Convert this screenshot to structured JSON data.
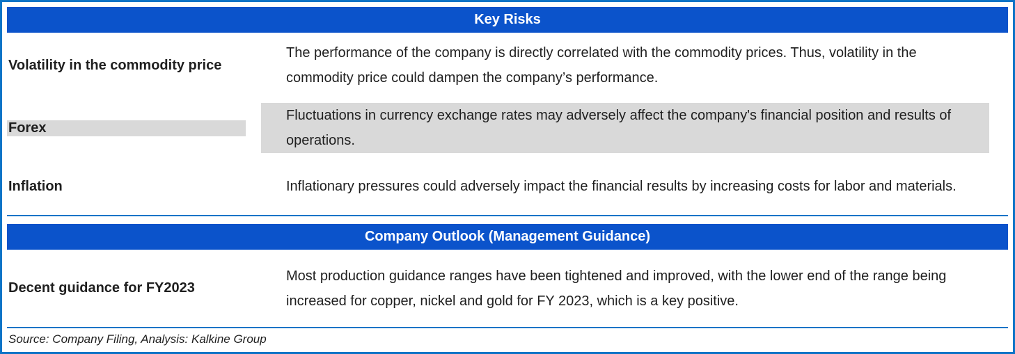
{
  "colors": {
    "header_bg": "#0b53cb",
    "border_blue": "#0c74c7",
    "shaded_row_bg": "#d9d9d9",
    "text_color": "#1f1f1f",
    "header_text": "#ffffff"
  },
  "sections": [
    {
      "title": "Key Risks",
      "rows": [
        {
          "label": "Volatility in the commodity price",
          "description": "The performance of the company is directly correlated with the commodity prices. Thus, volatility in the commodity price could dampen the company’s performance.",
          "shaded": false
        },
        {
          "label": "Forex",
          "description": "Fluctuations in currency exchange rates may adversely affect the company's financial position and results of operations.",
          "shaded": true
        },
        {
          "label": "Inflation",
          "description": "Inflationary pressures could adversely impact the financial results by increasing costs for labor and materials.",
          "shaded": false
        }
      ]
    },
    {
      "title": "Company Outlook (Management Guidance)",
      "rows": [
        {
          "label": "Decent guidance for FY2023",
          "description": "Most production guidance ranges have been tightened and improved, with the lower end of the range being increased for copper, nickel and gold for FY 2023, which is a key positive.",
          "shaded": false
        }
      ]
    }
  ],
  "footer": {
    "source": "Source: Company Filing, Analysis: Kalkine Group"
  }
}
